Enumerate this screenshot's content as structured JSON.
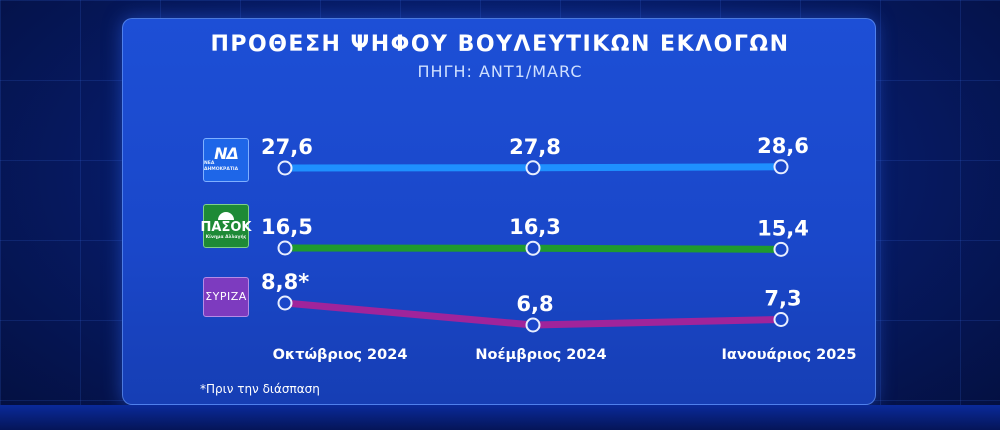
{
  "title": "ΠΡΟΘΕΣΗ ΨΗΦΟΥ ΒΟΥΛΕΥΤΙΚΩΝ ΕΚΛΟΓΩΝ",
  "subtitle": "ΠΗΓΗ: ANT1/MARC",
  "footnote": "*Πριν την διάσπαση",
  "logos": {
    "nd": {
      "big": "ΝΔ",
      "small": "ΝΕΑ ΔΗΜΟΚΡΑΤΙΑ"
    },
    "pasok": {
      "big": "ΠΑΣΟΚ",
      "small": "Κίνημα Αλλαγής"
    },
    "syriza": {
      "big": "ΣΥΡΙΖΑ"
    }
  },
  "chart_data": {
    "type": "line",
    "categories": [
      "Οκτώβριος 2024",
      "Νοέμβριος 2024",
      "Ιανουάριος 2025"
    ],
    "series": [
      {
        "name": "ΝΔ",
        "color": "#1e90ff",
        "values": [
          27.6,
          27.8,
          28.6
        ],
        "labels": [
          "27,6",
          "27,8",
          "28,6"
        ]
      },
      {
        "name": "ΠΑΣΟΚ",
        "color": "#1f9a2e",
        "values": [
          16.5,
          16.3,
          15.4
        ],
        "labels": [
          "16,5",
          "16,3",
          "15,4"
        ]
      },
      {
        "name": "ΣΥΡΙΖΑ",
        "color": "#a0249b",
        "values": [
          8.8,
          6.8,
          7.3
        ],
        "labels": [
          "8,8*",
          "6,8",
          "7,3"
        ]
      }
    ]
  }
}
